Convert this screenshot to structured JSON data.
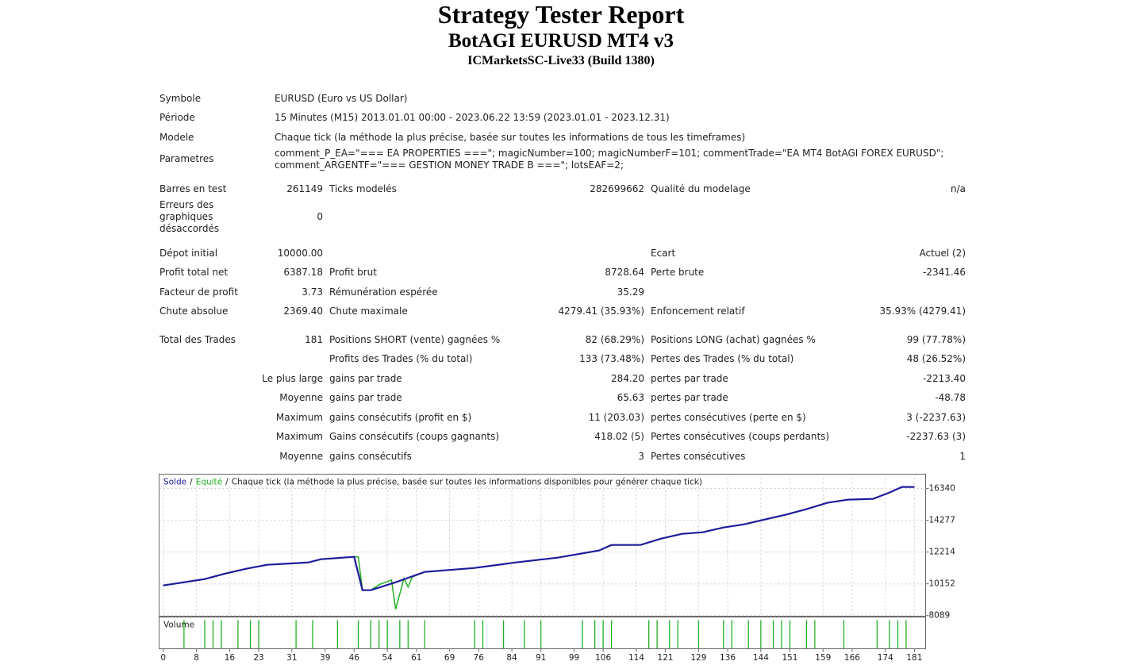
{
  "header": {
    "title": "Strategy Tester Report",
    "subtitle": "BotAGI EURUSD MT4 v3",
    "server": "ICMarketsSC-Live33 (Build 1380)"
  },
  "table": {
    "sections": [
      [
        [
          "Symbole",
          "EURUSD (Euro vs US Dollar)"
        ],
        [
          "Période",
          "15 Minutes (M15) 2013.01.01 00:00 - 2023.06.22 13:59 (2023.01.01 - 2023.12.31)"
        ],
        [
          "Modele",
          "Chaque tick (la méthode la plus précise, basée sur toutes les informations de tous les timeframes)"
        ],
        [
          "Parametres",
          "comment_P_EA=\"=== EA PROPERTIES ===\"; magicNumber=100; magicNumberF=101; commentTrade=\"EA MT4 BotAGI FOREX EURUSD\"; comment_ARGENTF=\"=== GESTION MONEY TRADE B ===\"; lotsEAF=2;"
        ]
      ],
      [
        [
          "Barres en test",
          "261149",
          "Ticks modelés",
          "282699662",
          "Qualité du modelage",
          "n/a"
        ],
        [
          "Erreurs des graphiques désaccordés",
          "0",
          null,
          null,
          null,
          null
        ]
      ],
      [
        [
          "Dépot initial",
          "10000.00",
          null,
          null,
          "Ecart",
          "Actuel (2)"
        ],
        [
          "Profit total net",
          "6387.18",
          "Profit brut",
          "8728.64",
          "Perte brute",
          "-2341.46"
        ],
        [
          "Facteur de profit",
          "3.73",
          "Rémunération espérée",
          "35.29",
          null,
          null
        ],
        [
          "Chute absolue",
          "2369.40",
          "Chute maximale",
          "4279.41 (35.93%)",
          "Enfoncement relatif",
          "35.93% (4279.41)"
        ]
      ],
      [
        [
          "Total des Trades",
          "181",
          "Positions SHORT (vente) gagnées %",
          "82 (68.29%)",
          "Positions LONG (achat) gagnées %",
          "99 (77.78%)"
        ],
        [
          null,
          null,
          "Profits des Trades (% du total)",
          "133 (73.48%)",
          "Pertes des Trades (% du total)",
          "48 (26.52%)"
        ],
        [
          null,
          "Le plus large",
          "gains par trade",
          "284.20",
          "pertes par trade",
          "-2213.40"
        ],
        [
          null,
          "Moyenne",
          "gains par trade",
          "65.63",
          "pertes par trade",
          "-48.78"
        ],
        [
          null,
          "Maximum",
          "gains consécutifs (profit en $)",
          "11 (203.03)",
          "pertes consécutives (perte en $)",
          "3 (-2237.63)"
        ],
        [
          null,
          "Maximum",
          "Gains consécutifs (coups gagnants)",
          "418.02 (5)",
          "Pertes consécutives (coups perdants)",
          "-2237.63 (3)"
        ],
        [
          null,
          "Moyenne",
          "gains consécutifs",
          "3",
          "Pertes consécutives",
          "1"
        ]
      ]
    ]
  },
  "chart_data": {
    "type": "line",
    "legend_separator": "/",
    "legend_note": "Chaque tick (la méthode la plus précise, basée sur toutes les informations disponibles pour générer chaque tick)",
    "xlim": [
      -1,
      183.7
    ],
    "ylim": [
      8050,
      17270
    ],
    "xticks": [
      0,
      8,
      16,
      23,
      31,
      39,
      46,
      54,
      61,
      69,
      76,
      84,
      91,
      99,
      106,
      114,
      121,
      129,
      136,
      144,
      151,
      159,
      166,
      174,
      181
    ],
    "yticks": [
      8089,
      10152,
      12214,
      14277,
      16340
    ],
    "grid": true,
    "series": [
      {
        "name": "Equité",
        "color": "#22b022",
        "x": [
          0,
          5,
          10,
          15,
          20,
          25,
          35,
          38,
          46,
          47,
          48,
          50,
          52,
          55,
          56,
          58,
          59,
          60,
          63,
          75,
          85,
          95,
          105,
          108,
          115,
          120,
          125,
          130,
          135,
          140,
          145,
          150,
          155,
          160,
          165,
          171,
          175,
          178,
          181
        ],
        "values": [
          10048,
          10254,
          10460,
          10821,
          11130,
          11388,
          11543,
          11749,
          11904,
          11904,
          9738,
          9738,
          10100,
          10400,
          8501,
          10500,
          9950,
          10600,
          10924,
          11182,
          11543,
          11852,
          12316,
          12677,
          12677,
          13089,
          13399,
          13502,
          13811,
          14017,
          14327,
          14636,
          14997,
          15409,
          15616,
          15667,
          16080,
          16441,
          16441
        ]
      },
      {
        "name": "Solde",
        "color": "#1c1c9c",
        "x": [
          0,
          5,
          10,
          15,
          20,
          25,
          35,
          38,
          46,
          48,
          50,
          56,
          63,
          75,
          85,
          95,
          105,
          108,
          115,
          120,
          125,
          130,
          135,
          140,
          145,
          150,
          155,
          160,
          165,
          171,
          175,
          178,
          181
        ],
        "values": [
          10048,
          10254,
          10460,
          10821,
          11130,
          11388,
          11543,
          11749,
          11904,
          9738,
          9738,
          10254,
          10924,
          11182,
          11543,
          11852,
          12316,
          12677,
          12677,
          13089,
          13399,
          13502,
          13811,
          14017,
          14327,
          14636,
          14997,
          15409,
          15616,
          15667,
          16080,
          16441,
          16441
        ]
      }
    ],
    "volume": {
      "label": "Volume",
      "color": "#22b022",
      "x": [
        5,
        10,
        12,
        14,
        18,
        21,
        23,
        32,
        36,
        42,
        47,
        50,
        52,
        54,
        57,
        59,
        63,
        75,
        77,
        82,
        87,
        91,
        101,
        104,
        106,
        108,
        117,
        119,
        122,
        124,
        129,
        135,
        137,
        141,
        144,
        147,
        149,
        151,
        155,
        157,
        164,
        172,
        175,
        177,
        179
      ]
    }
  }
}
